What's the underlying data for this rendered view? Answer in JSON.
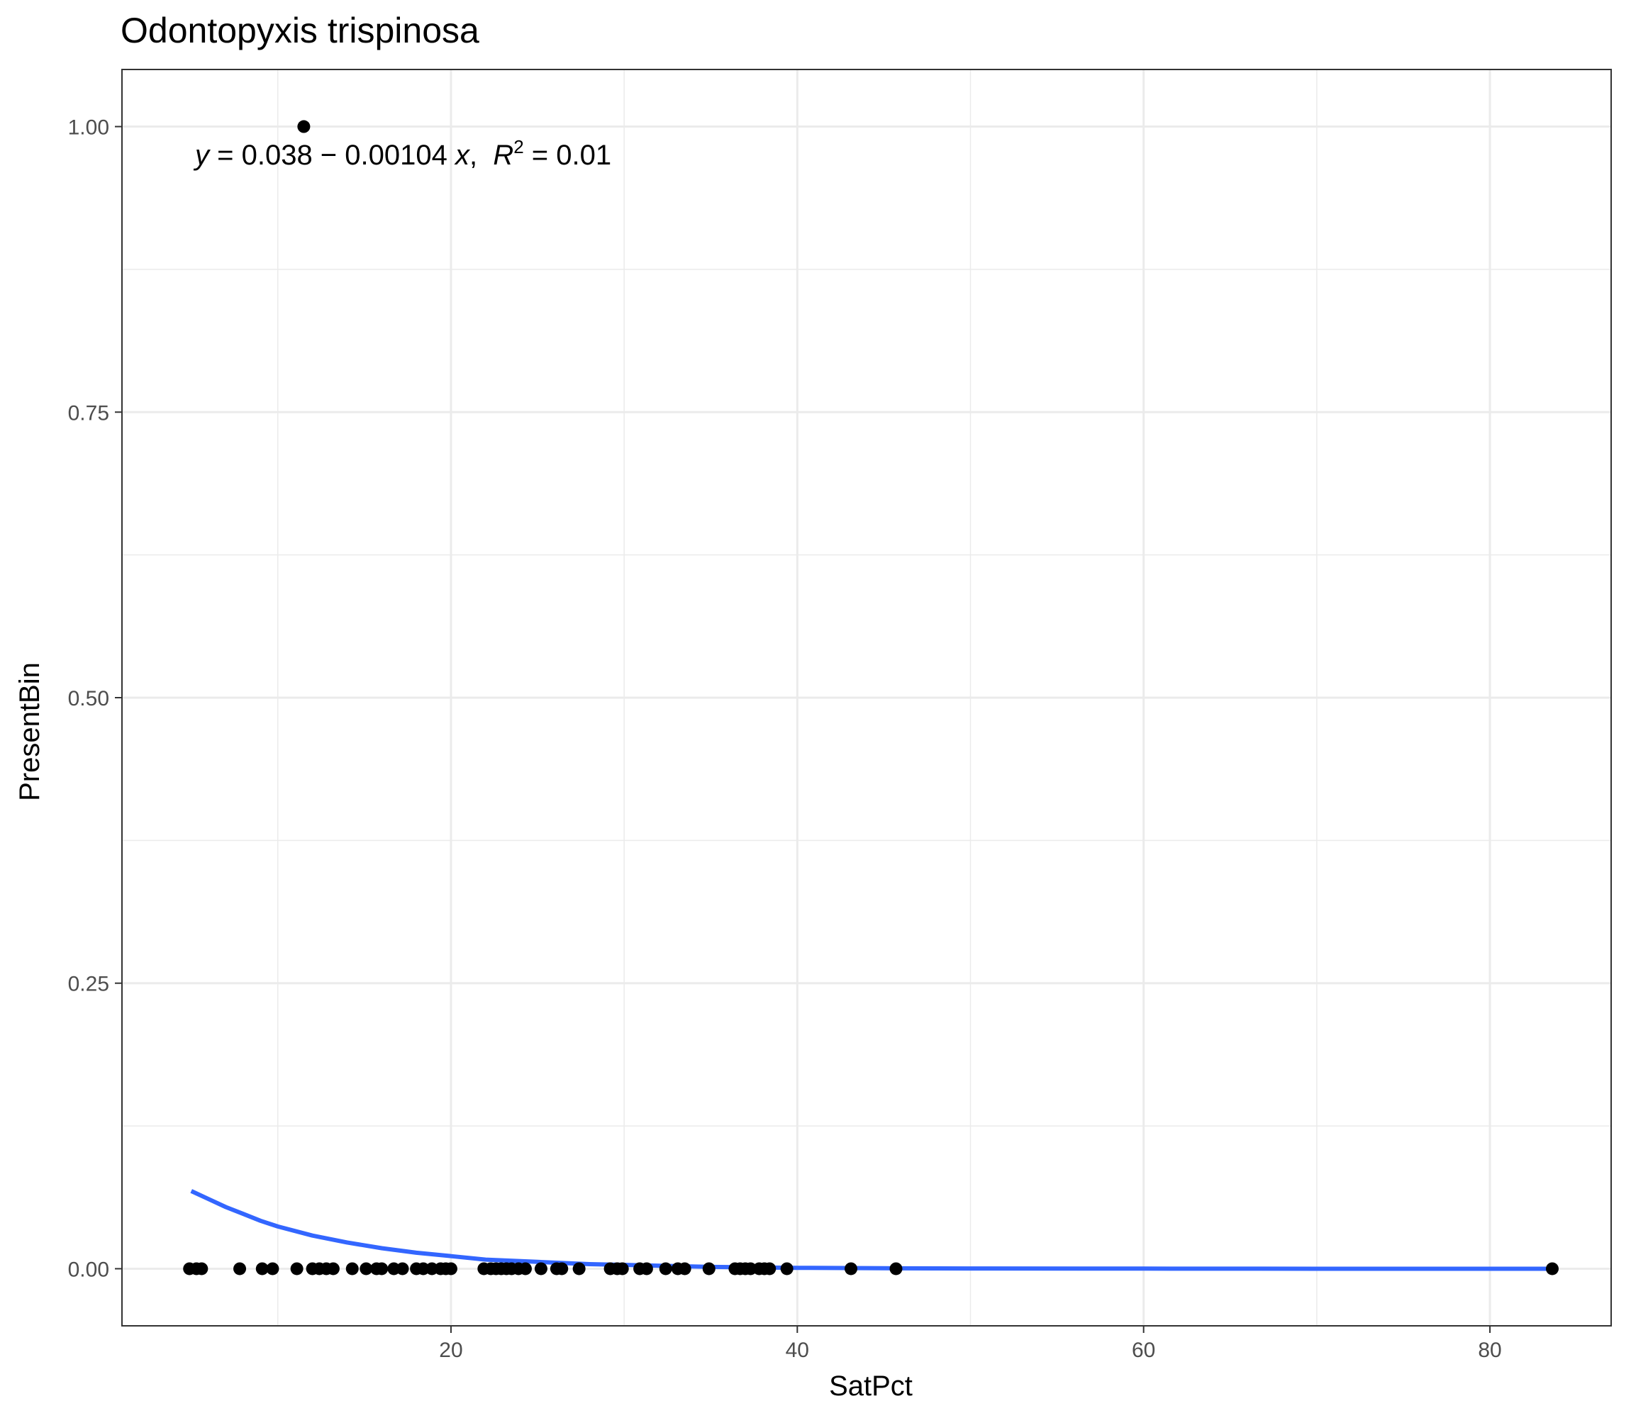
{
  "chart_data": {
    "type": "scatter",
    "title": "Odontopyxis trispinosa",
    "xlabel": "SatPct",
    "ylabel": "PresentBin",
    "xlim": [
      1.0,
      87.0
    ],
    "ylim": [
      -0.05,
      1.05
    ],
    "x_ticks": [
      20,
      40,
      60,
      80
    ],
    "x_tick_labels": [
      "20",
      "40",
      "60",
      "80"
    ],
    "y_ticks": [
      0,
      0.25,
      0.5,
      0.75,
      1.0
    ],
    "y_tick_labels": [
      "0.00",
      "0.25",
      "0.50",
      "0.75",
      "1.00"
    ],
    "grid": true,
    "points": {
      "x": [
        11.5,
        4.9,
        5.3,
        5.6,
        7.8,
        9.1,
        9.7,
        11.1,
        12.0,
        12.4,
        12.8,
        13.2,
        14.3,
        15.1,
        15.7,
        16.0,
        16.7,
        17.2,
        18.0,
        18.4,
        18.9,
        19.4,
        19.7,
        20.0,
        21.9,
        22.3,
        22.6,
        22.9,
        23.2,
        23.5,
        23.9,
        24.3,
        25.2,
        26.1,
        26.4,
        27.4,
        29.2,
        29.6,
        29.9,
        30.9,
        31.3,
        32.4,
        33.1,
        33.5,
        34.9,
        36.4,
        36.7,
        37.0,
        37.3,
        37.8,
        38.1,
        38.4,
        39.4,
        43.1,
        45.7,
        83.6
      ],
      "y": [
        1,
        0,
        0,
        0,
        0,
        0,
        0,
        0,
        0,
        0,
        0,
        0,
        0,
        0,
        0,
        0,
        0,
        0,
        0,
        0,
        0,
        0,
        0,
        0,
        0,
        0,
        0,
        0,
        0,
        0,
        0,
        0,
        0,
        0,
        0,
        0,
        0,
        0,
        0,
        0,
        0,
        0,
        0,
        0,
        0,
        0,
        0,
        0,
        0,
        0,
        0,
        0,
        0,
        0,
        0,
        0
      ],
      "color": "#000000"
    },
    "fit_curve": {
      "color": "#3366ff",
      "x": [
        5.0,
        6.0,
        7.0,
        8.0,
        9.0,
        10.0,
        12.0,
        14.0,
        16.0,
        18.0,
        20.0,
        22.0,
        25.0,
        28.0,
        31.0,
        35.0,
        40.0,
        45.0,
        50.0,
        60.0,
        70.0,
        83.6
      ],
      "y": [
        0.068,
        0.061,
        0.054,
        0.048,
        0.042,
        0.037,
        0.029,
        0.023,
        0.018,
        0.014,
        0.011,
        0.008,
        0.006,
        0.004,
        0.003,
        0.0016,
        0.0008,
        0.0004,
        0.0002,
        0.0001,
        0.0,
        0.0
      ]
    },
    "annotation": {
      "y_part": "y",
      "eq_part": " = 0.038 − 0.00104 ",
      "x_part": "x",
      "sep": ",  ",
      "r_part": "R",
      "sup": "2",
      "r_value": " = 0.01"
    }
  }
}
